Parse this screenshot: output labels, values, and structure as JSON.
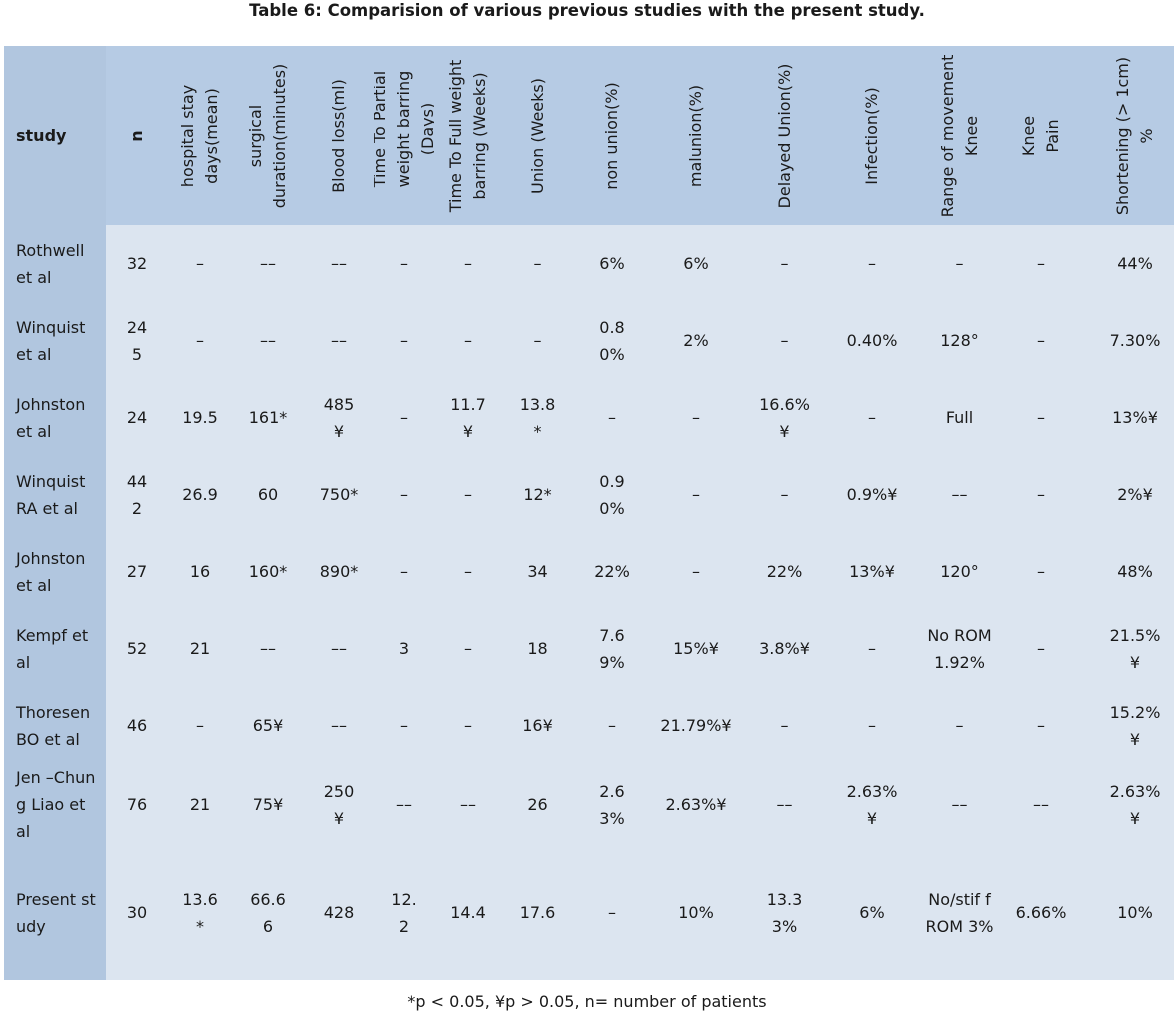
{
  "caption": "Table 6: Comparision of various previous studies with the present study.",
  "headers": {
    "study": "study",
    "n": "n",
    "hospital_stay": "hospital stay days(mean)",
    "surgical_duration": "surgical duration(minutes)",
    "blood_loss": "Blood loss(ml)",
    "partial_weight": "Time To Partial weight barring (Days)",
    "full_weight": "Time To Full weight barring (Weeks)",
    "union": "Union (Weeks)",
    "non_union": "non union(%)",
    "malunion": "malunion(%)",
    "delayed_union": "Delayed Union(%)",
    "infection": "Infection(%)",
    "rom_knee": "Range of movement Knee",
    "knee_pain": "Knee Pain",
    "shortening": "Shortening (> 1cm) %"
  },
  "rows": [
    {
      "study": "Rothwell et al",
      "n": "32",
      "hospital_stay": "–",
      "surgical_duration": "––",
      "blood_loss": "––",
      "partial_weight": "–",
      "full_weight": "–",
      "union": "–",
      "non_union": "6%",
      "malunion": "6%",
      "delayed_union": "–",
      "infection": "–",
      "rom_knee": "–",
      "knee_pain": "–",
      "shortening": "44%"
    },
    {
      "study": "Winquist et al",
      "n": "245",
      "hospital_stay": "–",
      "surgical_duration": "––",
      "blood_loss": "––",
      "partial_weight": "–",
      "full_weight": "–",
      "union": "–",
      "non_union": "0.80%",
      "malunion": "2%",
      "delayed_union": "–",
      "infection": "0.40%",
      "rom_knee": "128°",
      "knee_pain": "–",
      "shortening": "7.30%"
    },
    {
      "study": "Johnston et al",
      "n": "24",
      "hospital_stay": "19.5",
      "surgical_duration": "161*",
      "blood_loss": "485¥",
      "partial_weight": "–",
      "full_weight": "11.7¥",
      "union": "13.8*",
      "non_union": "–",
      "malunion": "–",
      "delayed_union": "16.6%¥",
      "infection": "–",
      "rom_knee": "Full",
      "knee_pain": "–",
      "shortening": "13%¥"
    },
    {
      "study": "Winquist RA et al",
      "n": "442",
      "hospital_stay": "26.9",
      "surgical_duration": "60",
      "blood_loss": "750*",
      "partial_weight": "–",
      "full_weight": "–",
      "union": "12*",
      "non_union": "0.90%",
      "malunion": "–",
      "delayed_union": "–",
      "infection": "0.9%¥",
      "rom_knee": "––",
      "knee_pain": "–",
      "shortening": "2%¥"
    },
    {
      "study": "Johnston et al",
      "n": "27",
      "hospital_stay": "16",
      "surgical_duration": "160*",
      "blood_loss": "890*",
      "partial_weight": "–",
      "full_weight": "–",
      "union": "34",
      "non_union": "22%",
      "malunion": "–",
      "delayed_union": "22%",
      "infection": "13%¥",
      "rom_knee": "120°",
      "knee_pain": "–",
      "shortening": "48%"
    },
    {
      "study": "Kempf et al",
      "n": "52",
      "hospital_stay": "21",
      "surgical_duration": "––",
      "blood_loss": "––",
      "partial_weight": "3",
      "full_weight": "–",
      "union": "18",
      "non_union": "7.69%",
      "malunion": "15%¥",
      "delayed_union": "3.8%¥",
      "infection": "–",
      "rom_knee": "No ROM 1.92%",
      "knee_pain": "–",
      "shortening": "21.5%¥"
    },
    {
      "study": "Thoresen BO et al",
      "n": "46",
      "hospital_stay": "–",
      "surgical_duration": "65¥",
      "blood_loss": "––",
      "partial_weight": "–",
      "full_weight": "–",
      "union": "16¥",
      "non_union": "–",
      "malunion": "21.79%¥",
      "delayed_union": "–",
      "infection": "–",
      "rom_knee": "–",
      "knee_pain": "–",
      "shortening": "15.2%¥"
    },
    {
      "study": "Jen –Chung Liao et al",
      "n": "76",
      "hospital_stay": "21",
      "surgical_duration": "75¥",
      "blood_loss": "250¥",
      "partial_weight": "––",
      "full_weight": "––",
      "union": "26",
      "non_union": "2.63%",
      "malunion": "2.63%¥",
      "delayed_union": "––",
      "infection": "2.63%¥",
      "rom_knee": "––",
      "knee_pain": "––",
      "shortening": "2.63%¥"
    },
    {
      "study": "Present study",
      "n": "30",
      "hospital_stay": "13.6*",
      "surgical_duration": "66.66",
      "blood_loss": "428",
      "partial_weight": "12.2",
      "full_weight": "14.4",
      "union": "17.6",
      "non_union": "–",
      "malunion": "10%",
      "delayed_union": "13.33%",
      "infection": "6%",
      "rom_knee": "No/stif f ROM 3%",
      "knee_pain": "6.66%",
      "shortening": "10%"
    }
  ],
  "footnote": "*p < 0.05, ¥p > 0.05, n= number of patients"
}
